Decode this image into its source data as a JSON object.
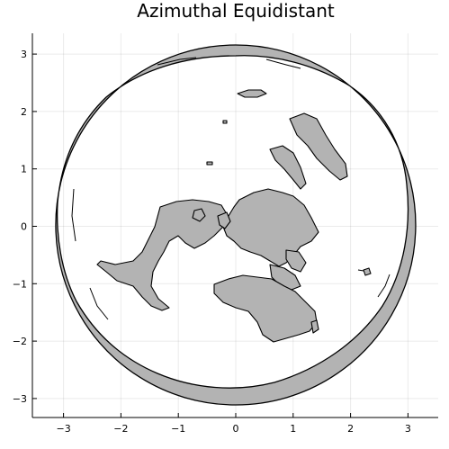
{
  "chart_data": {
    "type": "map",
    "title": "Azimuthal Equidistant",
    "projection": "azimuthal-equidistant",
    "center": "north-pole",
    "grid": true,
    "xlim": [
      -3.5,
      3.5
    ],
    "ylim": [
      -3.3,
      3.3
    ],
    "x_ticks": [
      -3,
      -2,
      -1,
      0,
      1,
      2,
      3
    ],
    "y_ticks": [
      -3,
      -2,
      -1,
      0,
      1,
      2,
      3
    ],
    "x_tick_labels": [
      "−3",
      "−2",
      "−1",
      "0",
      "1",
      "2",
      "3"
    ],
    "y_tick_labels": [
      "−3",
      "−2",
      "−1",
      "0",
      "1",
      "2",
      "3"
    ],
    "land_color": "#b3b3b3",
    "outline_color": "#000000",
    "background_color": "#ffffff",
    "land_regions": [
      "north-america",
      "greenland",
      "eurasia",
      "africa",
      "antarctica",
      "australia",
      "arabia",
      "india",
      "japan",
      "british-isles",
      "madagascar",
      "arctic-islands"
    ]
  }
}
